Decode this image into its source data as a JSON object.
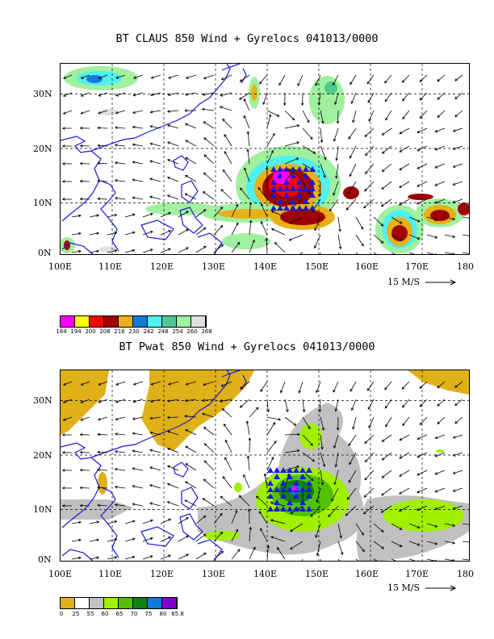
{
  "panel1": {
    "title": "BT CLAUS 850 Wind + Gyrelocs 041013/0000",
    "lat_ticks": [
      "30N",
      "20N",
      "10N",
      "0N"
    ],
    "lon_ticks": [
      "100E",
      "110E",
      "120E",
      "130E",
      "140E",
      "150E",
      "160E",
      "170E",
      "180"
    ],
    "ref_vector": "15 M/S",
    "legend_colors": [
      "#ff00ff",
      "#ffff00",
      "#ff0000",
      "#a00000",
      "#e8b018",
      "#1478d8",
      "#50f0f0",
      "#50c890",
      "#a0f0a0",
      "#e0e0e0"
    ],
    "legend_labels": [
      "184",
      "194",
      "200",
      "208",
      "216",
      "230",
      "242",
      "248",
      "254",
      "260",
      "268"
    ]
  },
  "panel2": {
    "title": "BT Pwat 850 Wind + Gyrelocs 041013/0000",
    "lat_ticks": [
      "30N",
      "20N",
      "10N",
      "0N"
    ],
    "lon_ticks": [
      "100E",
      "110E",
      "120E",
      "130E",
      "140E",
      "150E",
      "160E",
      "170E",
      "180"
    ],
    "ref_vector": "15 M/S",
    "legend_colors": [
      "#e0b018",
      "#ffffff",
      "#c0c0c0",
      "#a0f000",
      "#50c000",
      "#108010",
      "#1478d8",
      "#8000d0"
    ],
    "legend_labels": [
      "0",
      "25",
      "55",
      "60",
      "65",
      "70",
      "75",
      "80",
      "65.8"
    ]
  },
  "colors": {
    "coast": "#1a1adc",
    "gyreloc": "#1a1adc"
  }
}
